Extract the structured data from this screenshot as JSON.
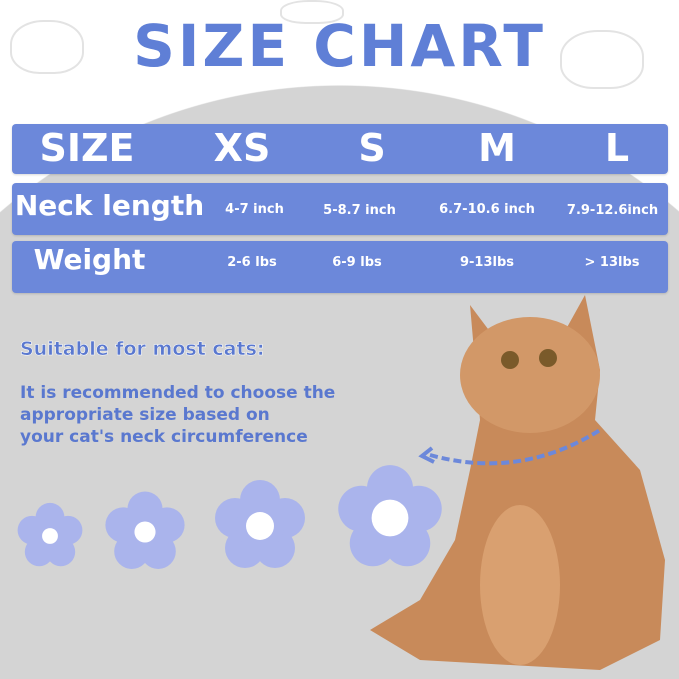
{
  "title": "SIZE CHART",
  "table": {
    "header": [
      "SIZE",
      "XS",
      "S",
      "M",
      "L"
    ],
    "neck": [
      "Neck length",
      "4-7 inch",
      "5-8.7 inch",
      "6.7-10.6 inch",
      "7.9-12.6inch"
    ],
    "weight": [
      "Weight",
      "2-6 lbs",
      "6-9 lbs",
      "9-13lbs",
      "> 13lbs"
    ]
  },
  "note": {
    "lead": "Suitable for most cats:",
    "lines": [
      "It is recommended to choose the",
      "appropriate size based on",
      "your cat's neck circumference"
    ]
  },
  "colors": {
    "accent": "#6c88da",
    "title": "#5f7fd6",
    "collar": "#aab4ec",
    "background": "#d4d4d4"
  }
}
